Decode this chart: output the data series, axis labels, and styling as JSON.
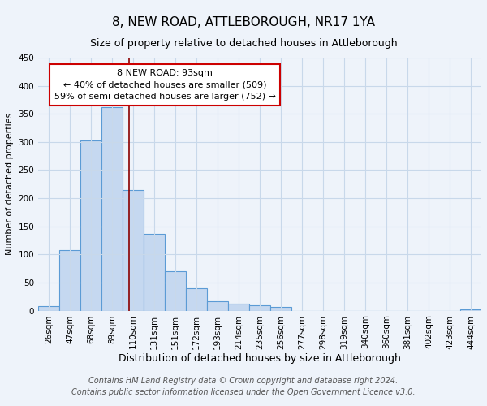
{
  "title": "8, NEW ROAD, ATTLEBOROUGH, NR17 1YA",
  "subtitle": "Size of property relative to detached houses in Attleborough",
  "xlabel": "Distribution of detached houses by size in Attleborough",
  "ylabel": "Number of detached properties",
  "bar_labels": [
    "26sqm",
    "47sqm",
    "68sqm",
    "89sqm",
    "110sqm",
    "131sqm",
    "151sqm",
    "172sqm",
    "193sqm",
    "214sqm",
    "235sqm",
    "256sqm",
    "277sqm",
    "298sqm",
    "319sqm",
    "340sqm",
    "360sqm",
    "381sqm",
    "402sqm",
    "423sqm",
    "444sqm"
  ],
  "bar_values": [
    8,
    108,
    302,
    362,
    215,
    137,
    70,
    40,
    16,
    13,
    10,
    6,
    0,
    0,
    0,
    0,
    0,
    0,
    0,
    0,
    2
  ],
  "bar_color": "#c5d8f0",
  "bar_edge_color": "#5b9bd5",
  "vline_x_index": 3.82,
  "annotation_box_text_line1": "8 NEW ROAD: 93sqm",
  "annotation_box_text_line2": "← 40% of detached houses are smaller (509)",
  "annotation_box_text_line3": "59% of semi-detached houses are larger (752) →",
  "annotation_box_color": "white",
  "annotation_box_edge_color": "#cc0000",
  "vline_color": "#8b0000",
  "ylim": [
    0,
    450
  ],
  "yticks": [
    0,
    50,
    100,
    150,
    200,
    250,
    300,
    350,
    400,
    450
  ],
  "grid_color": "#c8d8ea",
  "background_color": "#eef3fa",
  "footer_line1": "Contains HM Land Registry data © Crown copyright and database right 2024.",
  "footer_line2": "Contains public sector information licensed under the Open Government Licence v3.0.",
  "title_fontsize": 11,
  "subtitle_fontsize": 9,
  "ylabel_fontsize": 8,
  "xlabel_fontsize": 9,
  "tick_fontsize": 7.5,
  "footer_fontsize": 7,
  "annot_fontsize": 8
}
